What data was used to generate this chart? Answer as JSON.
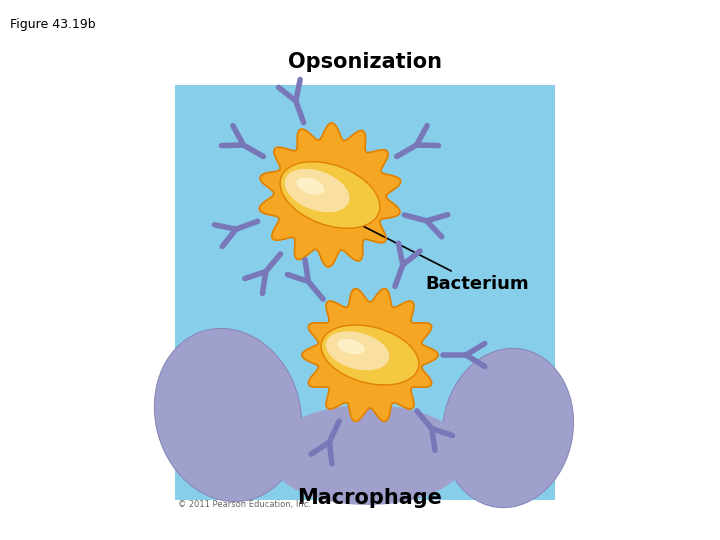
{
  "title": "Figure 43.19b",
  "opsonization_label": "Opsonization",
  "bacterium_label": "Bacterium",
  "macrophage_label": "Macrophage",
  "copyright": "© 2011 Pearson Education, Inc.",
  "bg_color": "#ffffff",
  "panel_bg": "#87CEEB",
  "bacterium_orange": "#F5A623",
  "bacterium_orange_dark": "#E08000",
  "egg_outer": "#F5C842",
  "egg_inner": "#FAE0A0",
  "egg_highlight": "#FFF5D0",
  "antibody_color": "#7878B8",
  "macrophage_color": "#A0A0CC",
  "macrophage_edge": "#8888BB"
}
